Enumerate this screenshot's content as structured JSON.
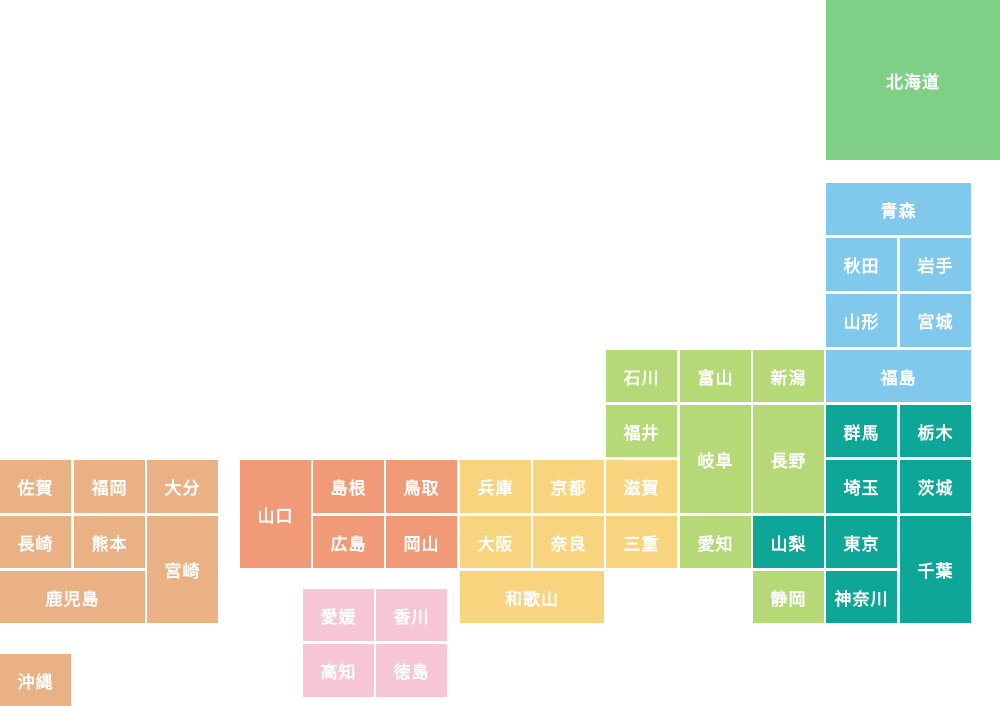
{
  "colors": {
    "hokkaido": "#80cf87",
    "tohoku": "#80c8ec",
    "kanto": "#0ea696",
    "chubu": "#b6d977",
    "kinki": "#f9d47f",
    "chugoku": "#f19a77",
    "shikoku": "#f6c6d6",
    "kyushu": "#eab184"
  },
  "prefectures": [
    {
      "id": "hokkaido",
      "name": "北海道",
      "region": "hokkaido"
    },
    {
      "id": "aomori",
      "name": "青森",
      "region": "tohoku"
    },
    {
      "id": "akita",
      "name": "秋田",
      "region": "tohoku"
    },
    {
      "id": "iwate",
      "name": "岩手",
      "region": "tohoku"
    },
    {
      "id": "yamagata",
      "name": "山形",
      "region": "tohoku"
    },
    {
      "id": "miyagi",
      "name": "宮城",
      "region": "tohoku"
    },
    {
      "id": "fukushima",
      "name": "福島",
      "region": "tohoku"
    },
    {
      "id": "ishikawa",
      "name": "石川",
      "region": "chubu"
    },
    {
      "id": "toyama",
      "name": "富山",
      "region": "chubu"
    },
    {
      "id": "niigata",
      "name": "新潟",
      "region": "chubu"
    },
    {
      "id": "fukui",
      "name": "福井",
      "region": "chubu"
    },
    {
      "id": "gifu",
      "name": "岐阜",
      "region": "chubu"
    },
    {
      "id": "nagano",
      "name": "長野",
      "region": "chubu"
    },
    {
      "id": "aichi",
      "name": "愛知",
      "region": "chubu"
    },
    {
      "id": "yamanashi",
      "name": "山梨",
      "region": "kanto"
    },
    {
      "id": "shizuoka",
      "name": "静岡",
      "region": "chubu"
    },
    {
      "id": "gunma",
      "name": "群馬",
      "region": "kanto"
    },
    {
      "id": "tochigi",
      "name": "栃木",
      "region": "kanto"
    },
    {
      "id": "saitama",
      "name": "埼玉",
      "region": "kanto"
    },
    {
      "id": "ibaraki",
      "name": "茨城",
      "region": "kanto"
    },
    {
      "id": "tokyo",
      "name": "東京",
      "region": "kanto"
    },
    {
      "id": "chiba",
      "name": "千葉",
      "region": "kanto"
    },
    {
      "id": "kanagawa",
      "name": "神奈川",
      "region": "kanto"
    },
    {
      "id": "shiga",
      "name": "滋賀",
      "region": "kinki"
    },
    {
      "id": "mie",
      "name": "三重",
      "region": "kinki"
    },
    {
      "id": "kyoto",
      "name": "京都",
      "region": "kinki"
    },
    {
      "id": "hyogo",
      "name": "兵庫",
      "region": "kinki"
    },
    {
      "id": "osaka",
      "name": "大阪",
      "region": "kinki"
    },
    {
      "id": "nara",
      "name": "奈良",
      "region": "kinki"
    },
    {
      "id": "wakayama",
      "name": "和歌山",
      "region": "kinki"
    },
    {
      "id": "tottori",
      "name": "鳥取",
      "region": "chugoku"
    },
    {
      "id": "shimane",
      "name": "島根",
      "region": "chugoku"
    },
    {
      "id": "okayama",
      "name": "岡山",
      "region": "chugoku"
    },
    {
      "id": "hiroshima",
      "name": "広島",
      "region": "chugoku"
    },
    {
      "id": "yamaguchi",
      "name": "山口",
      "region": "chugoku"
    },
    {
      "id": "ehime",
      "name": "愛媛",
      "region": "shikoku"
    },
    {
      "id": "kagawa",
      "name": "香川",
      "region": "shikoku"
    },
    {
      "id": "kochi",
      "name": "高知",
      "region": "shikoku"
    },
    {
      "id": "tokushima",
      "name": "徳島",
      "region": "shikoku"
    },
    {
      "id": "saga",
      "name": "佐賀",
      "region": "kyushu"
    },
    {
      "id": "fukuoka",
      "name": "福岡",
      "region": "kyushu"
    },
    {
      "id": "oita",
      "name": "大分",
      "region": "kyushu"
    },
    {
      "id": "nagasaki",
      "name": "長崎",
      "region": "kyushu"
    },
    {
      "id": "kumamoto",
      "name": "熊本",
      "region": "kyushu"
    },
    {
      "id": "miyazaki",
      "name": "宮崎",
      "region": "kyushu"
    },
    {
      "id": "kagoshima",
      "name": "鹿児島",
      "region": "kyushu"
    },
    {
      "id": "okinawa",
      "name": "沖縄",
      "region": "kyushu"
    }
  ]
}
